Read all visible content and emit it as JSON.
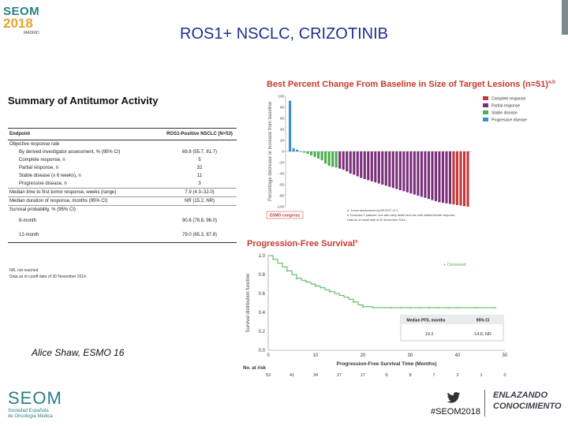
{
  "header": {
    "logo_text": "SEOM",
    "logo_year": "2018",
    "logo_city": "MADRID",
    "title": "ROS1+ NSCLC, CRIZOTINIB"
  },
  "summary": {
    "title": "Summary of Antitumor Activity",
    "col_endpoint": "Endpoint",
    "col_value": "ROS1-Positive NSCLC (N=53)",
    "rows": [
      {
        "label": "Objective response rate",
        "value": "",
        "indent": false
      },
      {
        "label": "By derived investigator assessment, % (95% CI)",
        "value": "69.8 (55.7, 81.7)",
        "indent": true
      },
      {
        "label": "Complete response, n",
        "value": "5",
        "indent": true
      },
      {
        "label": "Partial response, n",
        "value": "32",
        "indent": true
      },
      {
        "label": "Stable disease (≥ 6 weeks), n",
        "value": "11",
        "indent": true
      },
      {
        "label": "Progressive disease, n",
        "value": "3",
        "indent": true
      },
      {
        "label": "Median time to first tumor response, weeks (range)",
        "value": "7.9 (4.3–32.0)",
        "indent": false
      },
      {
        "label": "Median duration of response, months (95% CI)",
        "value": "NR (15.2, NR)",
        "indent": false
      },
      {
        "label": "Survival probability, % (95% CI)",
        "value": "",
        "indent": false
      },
      {
        "label": "6-month",
        "value": "90.6 (78.8, 96.0)",
        "indent": true
      },
      {
        "label": "12-month",
        "value": "79.0 (65.3, 87.8)",
        "indent": true
      }
    ],
    "footnote1": "NR, not reached",
    "footnote2": "Data as of cutoff date of 30 November 2014."
  },
  "citation": "Alice Shaw, ESMO 16",
  "waterfall": {
    "title": "Best Percent Change From Baseline in Size of Target Lesions (n=51)",
    "title_sup": "a,b",
    "ylabel": "Percentage decrease or increase from baseline",
    "legend": [
      {
        "label": "Complete response",
        "color": "#c43a3a"
      },
      {
        "label": "Partial response",
        "color": "#7a2f7a"
      },
      {
        "label": "Stable disease",
        "color": "#4caf50"
      },
      {
        "label": "Progressive disease",
        "color": "#3a8fc9"
      }
    ],
    "congress_label": "ESMO congress",
    "notes": [
      "a: Tumor assessment by RECIST v1.1.",
      "b: Excludes 2 patients: one with early death and one with indeterminate response",
      "Data as of cutoff date of 30 November 2014."
    ]
  },
  "pfs": {
    "title": "Progression-Free Survival",
    "title_sup": "a",
    "ylabel": "Survival distribution function",
    "xlabel": "Progression-Free Survival Time (Months)",
    "legend_censored": "+ Censored",
    "median_header": "Median PFS, months",
    "ci_header": "95% CI",
    "median_value": "19.3",
    "ci_value": "14.8, NR",
    "at_risk_label": "No. at risk",
    "at_risk": [
      "53",
      "41",
      "34",
      "27",
      "17",
      "9",
      "8",
      "7",
      "2",
      "1",
      "0"
    ]
  },
  "chart_data": [
    {
      "type": "bar",
      "title": "Best Percent Change From Baseline in Size of Target Lesions (n=51)",
      "ylabel": "Percentage decrease or increase from baseline",
      "ylim": [
        -100,
        100
      ],
      "yticks": [
        100,
        80,
        60,
        40,
        20,
        0,
        -20,
        -40,
        -60,
        -80,
        -100
      ],
      "series": [
        {
          "name": "Progressive disease",
          "color": "#3a8fc9",
          "values": [
            92,
            6,
            3
          ]
        },
        {
          "name": "Stable disease",
          "color": "#4caf50",
          "values": [
            0,
            -2,
            -4,
            -7,
            -10,
            -13,
            -16,
            -22,
            -26,
            -28,
            -29
          ]
        },
        {
          "name": "Partial response",
          "color": "#7a2f7a",
          "values": [
            -31,
            -33,
            -36,
            -40,
            -42,
            -45,
            -48,
            -50,
            -52,
            -54,
            -56,
            -58,
            -60,
            -62,
            -64,
            -66,
            -68,
            -70,
            -72,
            -74,
            -76,
            -78,
            -80,
            -82,
            -84,
            -86,
            -88,
            -90,
            -92,
            -93,
            -94,
            -95
          ]
        },
        {
          "name": "Complete response",
          "color": "#c43a3a",
          "values": [
            -96,
            -97,
            -98,
            -99,
            -100
          ]
        }
      ]
    },
    {
      "type": "line",
      "title": "Progression-Free Survival",
      "xlabel": "Progression-Free Survival Time (Months)",
      "ylabel": "Survival distribution function",
      "xlim": [
        0,
        50
      ],
      "ylim": [
        0,
        1.0
      ],
      "xticks": [
        0,
        10,
        20,
        30,
        40,
        50
      ],
      "yticks": [
        0.0,
        0.2,
        0.4,
        0.6,
        0.8,
        1.0
      ],
      "x": [
        0,
        1,
        2,
        3,
        4,
        5,
        6,
        7,
        8,
        9,
        10,
        11,
        12,
        13,
        14,
        15,
        16,
        17,
        18,
        19,
        20,
        22,
        24,
        26,
        30,
        40,
        48
      ],
      "y": [
        1.0,
        0.96,
        0.92,
        0.88,
        0.84,
        0.8,
        0.76,
        0.74,
        0.72,
        0.7,
        0.68,
        0.66,
        0.64,
        0.62,
        0.6,
        0.58,
        0.56,
        0.54,
        0.51,
        0.48,
        0.46,
        0.45,
        0.45,
        0.45,
        0.45,
        0.45,
        0.45
      ]
    }
  ],
  "footer": {
    "seom": "SEOM",
    "seom_sub1": "Sociedad Española",
    "seom_sub2": "de Oncología Médica",
    "hashtag": "#SEOM2018",
    "slogan1": "ENLAZANDO",
    "slogan2": "CONOCIMIENTO"
  }
}
